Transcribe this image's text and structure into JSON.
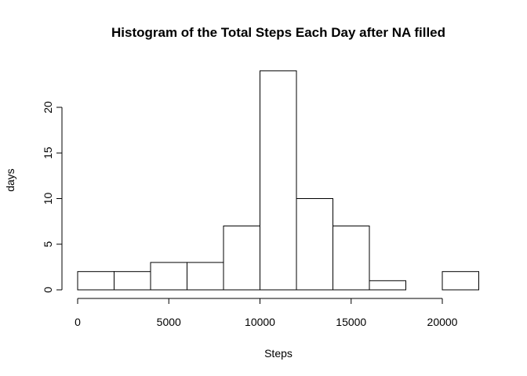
{
  "chart_data": {
    "type": "bar",
    "title": "Histogram of the Total Steps Each Day after NA filled",
    "xlabel": "Steps",
    "ylabel": "days",
    "bins": [
      {
        "from": 0,
        "to": 2000,
        "count": 2
      },
      {
        "from": 2000,
        "to": 4000,
        "count": 2
      },
      {
        "from": 4000,
        "to": 6000,
        "count": 3
      },
      {
        "from": 6000,
        "to": 8000,
        "count": 3
      },
      {
        "from": 8000,
        "to": 10000,
        "count": 7
      },
      {
        "from": 10000,
        "to": 12000,
        "count": 24
      },
      {
        "from": 12000,
        "to": 14000,
        "count": 10
      },
      {
        "from": 14000,
        "to": 16000,
        "count": 7
      },
      {
        "from": 16000,
        "to": 18000,
        "count": 1
      },
      {
        "from": 18000,
        "to": 20000,
        "count": 0
      },
      {
        "from": 20000,
        "to": 22000,
        "count": 2
      }
    ],
    "xlim": [
      0,
      22000
    ],
    "ylim": [
      0,
      24
    ],
    "x_ticks": [
      0,
      5000,
      10000,
      15000,
      20000
    ],
    "y_ticks": [
      0,
      5,
      10,
      15,
      20
    ],
    "grid": false,
    "legend": "none"
  }
}
